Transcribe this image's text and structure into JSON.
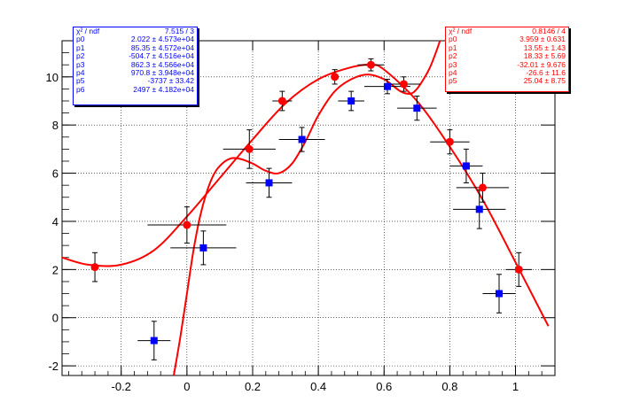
{
  "chart_data": {
    "type": "scatter",
    "title": "",
    "xlabel": "",
    "ylabel": "",
    "xlim": [
      -0.38,
      1.12
    ],
    "ylim": [
      -2.4,
      11.5
    ],
    "grid": true,
    "x_ticks": [
      -0.2,
      0,
      0.2,
      0.4,
      0.6,
      0.8,
      1
    ],
    "x_tick_labels": [
      "-0.2",
      "0",
      "0.2",
      "0.4",
      "0.6",
      "0.8",
      "1"
    ],
    "y_ticks": [
      -2,
      0,
      2,
      4,
      6,
      8,
      10
    ],
    "y_tick_labels": [
      "-2",
      "0",
      "2",
      "4",
      "6",
      "8",
      "10"
    ],
    "series": [
      {
        "color": "#ff0000",
        "marker": "circle",
        "points": [
          {
            "x": -0.28,
            "y": 2.1,
            "ex": 0.0,
            "ey": 0.6
          },
          {
            "x": 0.0,
            "y": 3.85,
            "ex": 0.12,
            "ey": 0.75
          },
          {
            "x": 0.19,
            "y": 7.0,
            "ex": 0.08,
            "ey": 0.8
          },
          {
            "x": 0.29,
            "y": 9.0,
            "ex": 0.03,
            "ey": 0.4
          },
          {
            "x": 0.45,
            "y": 10.0,
            "ex": 0.0,
            "ey": 0.3
          },
          {
            "x": 0.56,
            "y": 10.5,
            "ex": 0.04,
            "ey": 0.25
          },
          {
            "x": 0.66,
            "y": 9.7,
            "ex": 0.05,
            "ey": 0.3
          },
          {
            "x": 0.8,
            "y": 7.3,
            "ex": 0.06,
            "ey": 0.5
          },
          {
            "x": 0.9,
            "y": 5.4,
            "ex": 0.08,
            "ey": 0.6
          },
          {
            "x": 1.01,
            "y": 2.0,
            "ex": 0.04,
            "ey": 0.7
          }
        ]
      },
      {
        "color": "#0000ff",
        "marker": "square",
        "points": [
          {
            "x": -0.1,
            "y": -0.95,
            "ex": 0.05,
            "ey": 0.8
          },
          {
            "x": 0.05,
            "y": 2.9,
            "ex": 0.1,
            "ey": 0.7
          },
          {
            "x": 0.25,
            "y": 5.6,
            "ex": 0.07,
            "ey": 0.6
          },
          {
            "x": 0.35,
            "y": 7.4,
            "ex": 0.07,
            "ey": 0.5
          },
          {
            "x": 0.5,
            "y": 9.0,
            "ex": 0.04,
            "ey": 0.4
          },
          {
            "x": 0.61,
            "y": 9.6,
            "ex": 0.07,
            "ey": 0.3
          },
          {
            "x": 0.7,
            "y": 8.7,
            "ex": 0.06,
            "ey": 0.5
          },
          {
            "x": 0.85,
            "y": 6.3,
            "ex": 0.05,
            "ey": 0.7
          },
          {
            "x": 0.89,
            "y": 4.5,
            "ex": 0.08,
            "ey": 0.8
          },
          {
            "x": 0.95,
            "y": 1.0,
            "ex": 0.05,
            "ey": 0.8
          }
        ]
      }
    ],
    "fits": [
      {
        "color": "#ff0000",
        "x": [
          -0.38,
          -0.3,
          -0.2,
          -0.1,
          0.0,
          0.1,
          0.2,
          0.3,
          0.4,
          0.5,
          0.56,
          0.6,
          0.7,
          0.8,
          0.9,
          1.0,
          1.1
        ],
        "y": [
          2.5,
          2.2,
          2.2,
          2.8,
          4.2,
          5.8,
          7.4,
          8.9,
          9.9,
          10.4,
          10.5,
          10.3,
          9.0,
          7.1,
          4.9,
          2.3,
          -0.35
        ]
      },
      {
        "color": "#ff0000",
        "x": [
          -0.04,
          -0.02,
          0.0,
          0.02,
          0.04,
          0.06,
          0.08,
          0.1,
          0.13,
          0.16,
          0.2,
          0.24,
          0.28,
          0.32,
          0.36,
          0.4,
          0.45,
          0.5,
          0.55,
          0.6,
          0.65,
          0.68,
          0.7,
          0.72,
          0.74,
          0.76,
          0.77
        ],
        "y": [
          -2.4,
          -0.8,
          1.0,
          2.8,
          4.2,
          5.2,
          5.9,
          6.3,
          6.6,
          6.6,
          6.4,
          6.1,
          6.0,
          6.4,
          7.3,
          8.4,
          9.4,
          9.9,
          10.1,
          9.9,
          9.4,
          9.3,
          9.5,
          9.9,
          10.4,
          11.1,
          11.5
        ]
      }
    ],
    "stat_boxes": [
      {
        "color": "#0000ff",
        "rows": [
          {
            "key": "χ² / ndf",
            "value": "7.515 / 3"
          },
          {
            "key": "p0",
            "value": "2.022 ± 4.573e+04"
          },
          {
            "key": "p1",
            "value": "85.35 ± 4.572e+04"
          },
          {
            "key": "p2",
            "value": "-504.7 ± 4.516e+04"
          },
          {
            "key": "p3",
            "value": "862.3 ± 4.566e+04"
          },
          {
            "key": "p4",
            "value": "970.8 ± 3.948e+04"
          },
          {
            "key": "p5",
            "value": "-3737 ± 33.42"
          },
          {
            "key": "p6",
            "value": "2497 ± 4.182e+04"
          }
        ]
      },
      {
        "color": "#ff0000",
        "rows": [
          {
            "key": "χ² / ndf",
            "value": "0.8146 / 4"
          },
          {
            "key": "p0",
            "value": "3.959 ± 0.631"
          },
          {
            "key": "p1",
            "value": "13.55 ± 1.43"
          },
          {
            "key": "p2",
            "value": "18.33 ± 5.69"
          },
          {
            "key": "p3",
            "value": "-32.01 ± 9.676"
          },
          {
            "key": "p4",
            "value": "-26.6 ± 11.6"
          },
          {
            "key": "p5",
            "value": "25.04 ± 8.75"
          }
        ]
      }
    ]
  }
}
